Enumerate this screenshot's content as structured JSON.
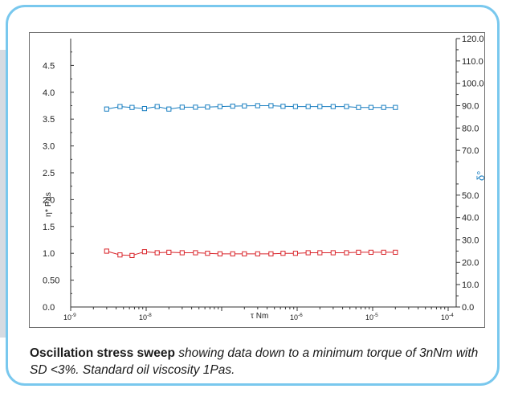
{
  "chart_data": {
    "type": "line",
    "xlabel": "τ Nm",
    "x_scale": "log",
    "xlim": [
      1e-09,
      0.0001
    ],
    "x_ticks": [
      {
        "value": 1e-09,
        "base": "10",
        "exp": "-9"
      },
      {
        "value": 1e-08,
        "base": "10",
        "exp": "-8"
      },
      {
        "value": 1e-06,
        "base": "10",
        "exp": "-6"
      },
      {
        "value": 1e-05,
        "base": "10",
        "exp": "-5"
      },
      {
        "value": 0.0001,
        "base": "10",
        "exp": "-4"
      }
    ],
    "left_axis": {
      "label": "η* Pas",
      "ylim": [
        0,
        5
      ],
      "ticks": [
        "0.0",
        "0.50",
        "1.0",
        "1.5",
        "2.0",
        "2.5",
        "3.0",
        "3.5",
        "4.0",
        "4.5"
      ],
      "tick_values": [
        0,
        0.5,
        1,
        1.5,
        2,
        2.5,
        3,
        3.5,
        4,
        4.5
      ]
    },
    "right_axis": {
      "label": "δ°",
      "ylim": [
        0,
        120
      ],
      "ticks": [
        "0.0",
        "10.0",
        "20.0",
        "30.0",
        "40.0",
        "50.0",
        "70.0",
        "80.0",
        "90.0",
        "100.0",
        "110.0",
        "120.0"
      ],
      "tick_values": [
        0,
        10,
        20,
        30,
        40,
        50,
        70,
        80,
        90,
        100,
        110,
        120
      ]
    },
    "grid": false,
    "legend": "none",
    "x": [
      3e-09,
      4.5e-09,
      6.5e-09,
      9.5e-09,
      1.4e-08,
      2e-08,
      3e-08,
      4.5e-08,
      6.5e-08,
      9.5e-08,
      1.4e-07,
      2e-07,
      3e-07,
      4.5e-07,
      6.5e-07,
      9.5e-07,
      1.4e-06,
      2e-06,
      3e-06,
      4.5e-06,
      6.5e-06,
      9.5e-06,
      1.4e-05,
      2e-05
    ],
    "series": [
      {
        "name": "η*",
        "axis": "left",
        "color": "#d9262c",
        "values": [
          1.04,
          0.97,
          0.96,
          1.03,
          1.01,
          1.02,
          1.01,
          1.01,
          1.0,
          0.99,
          0.99,
          0.99,
          0.99,
          0.99,
          1.0,
          1.0,
          1.01,
          1.01,
          1.01,
          1.01,
          1.02,
          1.02,
          1.02,
          1.02
        ]
      },
      {
        "name": "δ",
        "axis": "right",
        "color": "#1a7fc1",
        "values": [
          88.5,
          89.6,
          89.2,
          88.7,
          89.6,
          88.5,
          89.3,
          89.3,
          89.4,
          89.6,
          89.8,
          89.9,
          90.0,
          90.0,
          89.7,
          89.6,
          89.6,
          89.6,
          89.6,
          89.6,
          89.2,
          89.2,
          89.2,
          89.2
        ]
      }
    ]
  },
  "caption": {
    "bold": "Oscillation stress sweep",
    "italic": " showing data down to a minimum torque of 3nNm with SD <3%. Standard oil viscosity 1Pas."
  }
}
